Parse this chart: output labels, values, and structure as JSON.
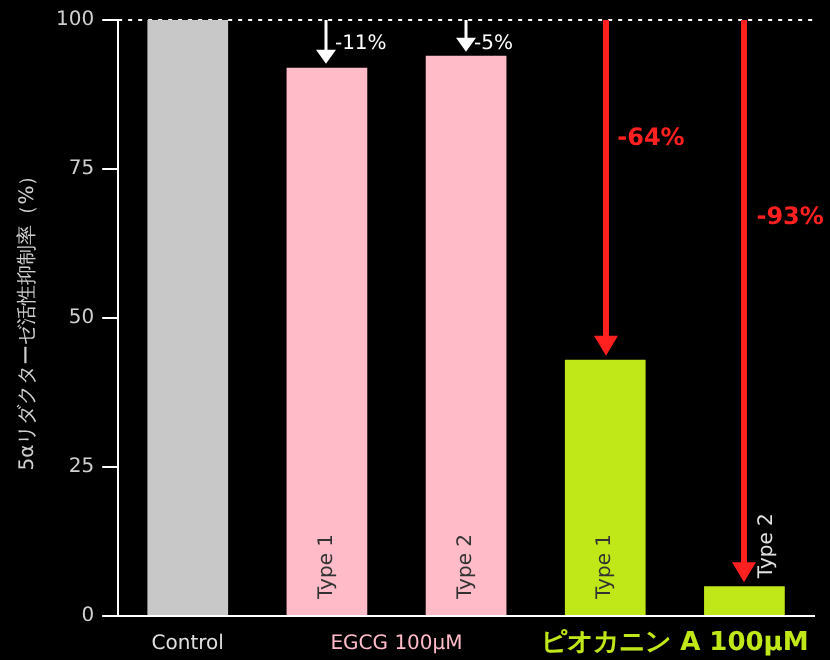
{
  "chart_data": {
    "type": "bar",
    "ylabel": "5αリダクターゼ活性抑制率（%）",
    "categories": [
      "Control",
      "Type 1",
      "Type 2",
      "Type 1",
      "Type 2"
    ],
    "values": [
      100,
      92,
      94,
      43,
      5
    ],
    "colors": [
      "#c8c8c8",
      "#ffbcc8",
      "#ffbcc8",
      "#c0e818",
      "#c0e818"
    ],
    "ylim": [
      0,
      100
    ],
    "yticks": [
      0,
      25,
      50,
      75,
      100
    ],
    "grid": false,
    "legend": false,
    "ref_lines": [
      {
        "axis": "y",
        "value": 100,
        "color": "#ffffff",
        "line_style": "dotted"
      }
    ],
    "annotations": [
      "-11%",
      "-5%",
      "-64%",
      "-93%",
      "EGCG 100μM",
      "ピオカニン A 100μM"
    ]
  }
}
